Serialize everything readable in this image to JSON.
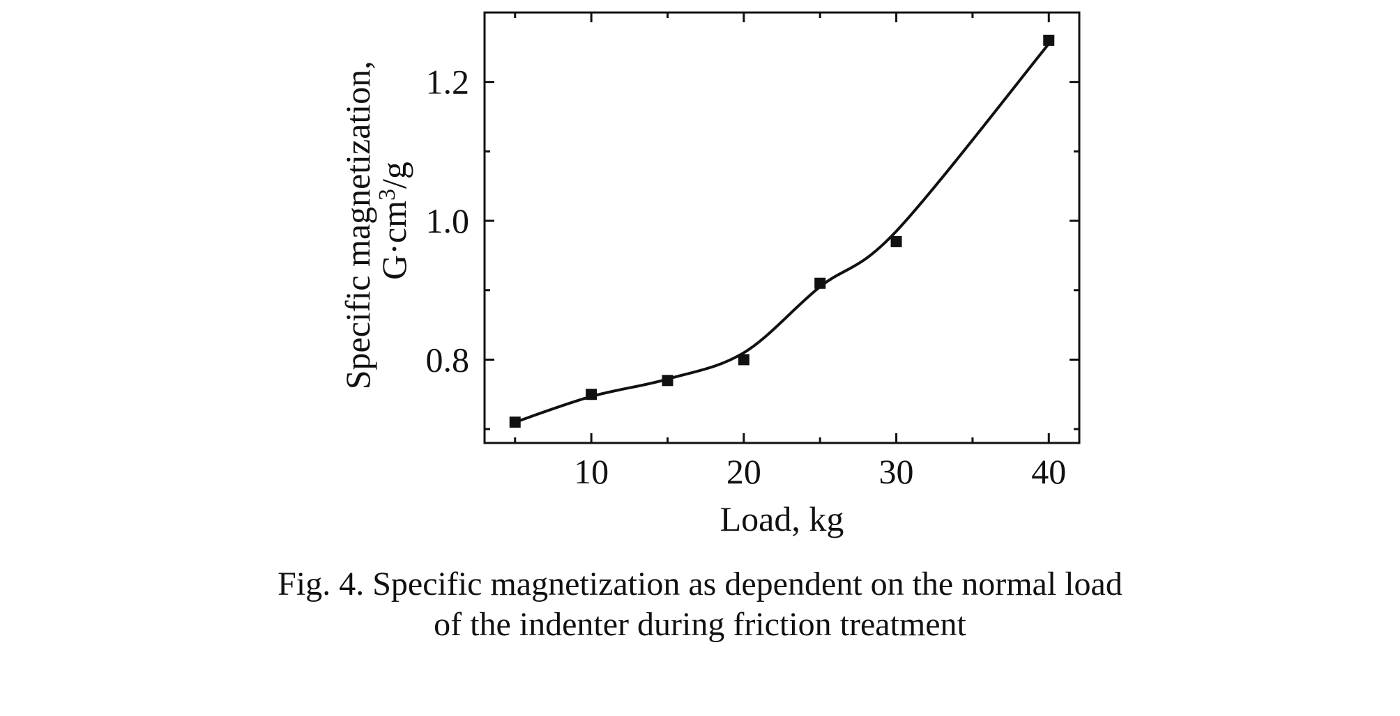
{
  "chart_data": {
    "type": "line",
    "xlabel": "Load, kg",
    "ylabel_line1": "Specific magnetization,",
    "ylabel_line2_base": "G·cm",
    "ylabel_line2_sup": "3",
    "ylabel_line2_tail": "/g",
    "xlim": [
      3,
      42
    ],
    "ylim": [
      0.68,
      1.3
    ],
    "x_ticks": [
      10,
      20,
      30,
      40
    ],
    "x_tick_labels": [
      "10",
      "20",
      "30",
      "40"
    ],
    "x_minor_ticks": [
      5,
      15,
      25,
      35
    ],
    "y_ticks": [
      0.8,
      1.0,
      1.2
    ],
    "y_tick_labels": [
      "0.8",
      "1.0",
      "1.2"
    ],
    "y_minor_ticks": [
      0.7,
      0.9,
      1.1
    ],
    "grid": false,
    "legend": "none",
    "series": [
      {
        "marker": "square",
        "x": [
          5,
          10,
          15,
          20,
          25,
          30,
          40
        ],
        "y": [
          0.71,
          0.75,
          0.77,
          0.8,
          0.91,
          0.97,
          1.26
        ]
      }
    ],
    "fit_curve": {
      "x": [
        5,
        10,
        15,
        20,
        25,
        30,
        40
      ],
      "y": [
        0.71,
        0.747,
        0.772,
        0.81,
        0.905,
        0.985,
        1.255
      ]
    }
  },
  "caption": {
    "line1": "Fig. 4. Specific magnetization as dependent on the normal load",
    "line2": "of the indenter during friction treatment"
  }
}
